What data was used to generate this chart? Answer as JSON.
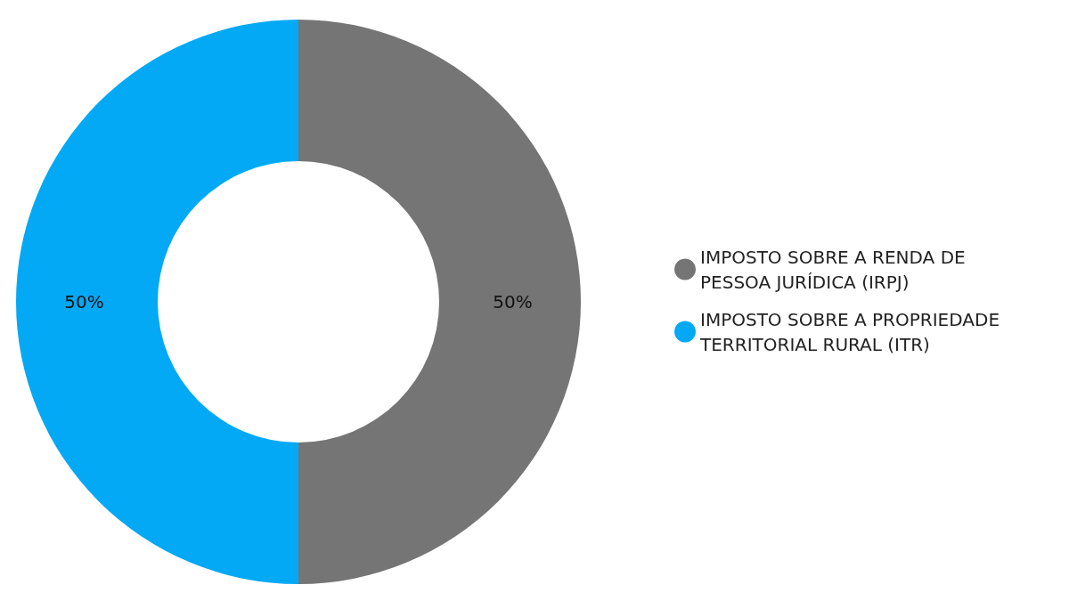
{
  "chart_data": {
    "type": "donut",
    "categories": [
      "IMPOSTO SOBRE A RENDA DE PESSOA JURÍDICA (IRPJ)",
      "IMPOSTO SOBRE A PROPRIEDADE TERRITORIAL RURAL (ITR)"
    ],
    "values": [
      50,
      50
    ],
    "colors": [
      "#757575",
      "#03a9f4"
    ],
    "value_labels": [
      "50%",
      "50%"
    ],
    "legend": "right"
  }
}
